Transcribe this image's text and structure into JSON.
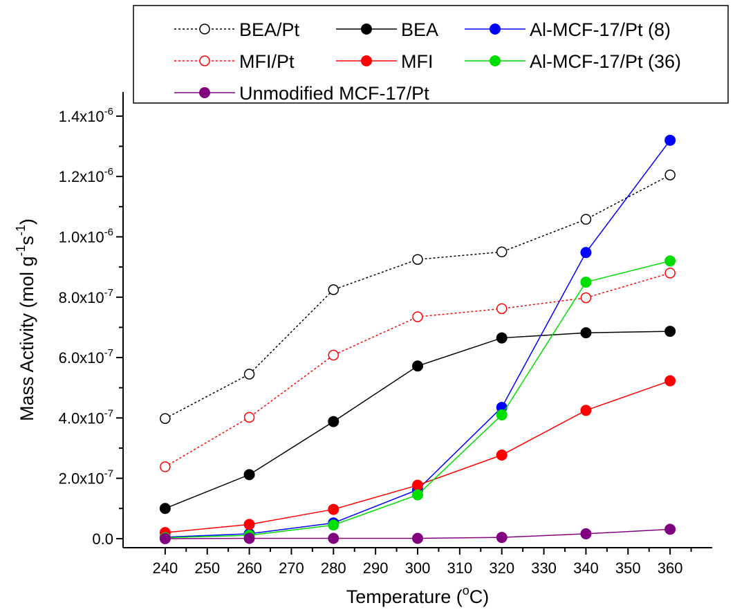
{
  "chart_data": {
    "type": "line",
    "x": [
      240,
      260,
      280,
      300,
      320,
      340,
      360
    ],
    "xlabel": {
      "main": "Temperature (",
      "sup": "o",
      "tail": "C)"
    },
    "ylabel": {
      "main": "Mass Activity (mol g",
      "sup1": "-1",
      "mid": "s",
      "sup2": "-1",
      "tail": ")"
    },
    "xlim": [
      230,
      370
    ],
    "ylim": [
      -3e-08,
      1.48e-06
    ],
    "x_ticks": [
      240,
      250,
      260,
      270,
      280,
      290,
      300,
      310,
      320,
      330,
      340,
      350,
      360
    ],
    "y_ticks": [
      {
        "value": 0,
        "mantissa": "0.0",
        "exp": ""
      },
      {
        "value": 2e-07,
        "mantissa": "2.0x10",
        "exp": "-7"
      },
      {
        "value": 4e-07,
        "mantissa": "4.0x10",
        "exp": "-7"
      },
      {
        "value": 6e-07,
        "mantissa": "6.0x10",
        "exp": "-7"
      },
      {
        "value": 8e-07,
        "mantissa": "8.0x10",
        "exp": "-7"
      },
      {
        "value": 1e-06,
        "mantissa": "1.0x10",
        "exp": "-6"
      },
      {
        "value": 1.2e-06,
        "mantissa": "1.2x10",
        "exp": "-6"
      },
      {
        "value": 1.4e-06,
        "mantissa": "1.4x10",
        "exp": "-6"
      }
    ],
    "grid": false,
    "legend_position": "top",
    "series": [
      {
        "name": "BEA/Pt",
        "color": "#000000",
        "dashed": true,
        "filled": false,
        "values": [
          3.98e-07,
          5.45e-07,
          8.25e-07,
          9.25e-07,
          9.5e-07,
          1.058e-06,
          1.205e-06
        ]
      },
      {
        "name": "BEA",
        "color": "#000000",
        "dashed": false,
        "filled": true,
        "values": [
          1e-07,
          2.12e-07,
          3.88e-07,
          5.72e-07,
          6.65e-07,
          6.82e-07,
          6.87e-07
        ]
      },
      {
        "name": "Al-MCF-17/Pt (8)",
        "color": "#0000ff",
        "dashed": false,
        "filled": true,
        "values": [
          5e-09,
          1.6e-08,
          5.2e-08,
          1.62e-07,
          4.35e-07,
          9.48e-07,
          1.32e-06
        ]
      },
      {
        "name": "MFI/Pt",
        "color": "#ff0000",
        "dashed": true,
        "filled": false,
        "values": [
          2.38e-07,
          4.02e-07,
          6.08e-07,
          7.35e-07,
          7.62e-07,
          7.98e-07,
          8.8e-07
        ]
      },
      {
        "name": "MFI",
        "color": "#ff0000",
        "dashed": false,
        "filled": true,
        "values": [
          2e-08,
          4.7e-08,
          9.7e-08,
          1.77e-07,
          2.77e-07,
          4.25e-07,
          5.23e-07
        ]
      },
      {
        "name": "Al-MCF-17/Pt (36)",
        "color": "#00dd00",
        "dashed": false,
        "filled": true,
        "values": [
          3e-09,
          1.1e-08,
          4.5e-08,
          1.45e-07,
          4.1e-07,
          8.5e-07,
          9.2e-07
        ]
      },
      {
        "name": "Unmodified MCF-17/Pt",
        "color": "#800080",
        "dashed": false,
        "filled": true,
        "values": [
          0.0,
          1e-09,
          1e-09,
          1e-09,
          4e-09,
          1.6e-08,
          3.1e-08
        ]
      }
    ]
  }
}
